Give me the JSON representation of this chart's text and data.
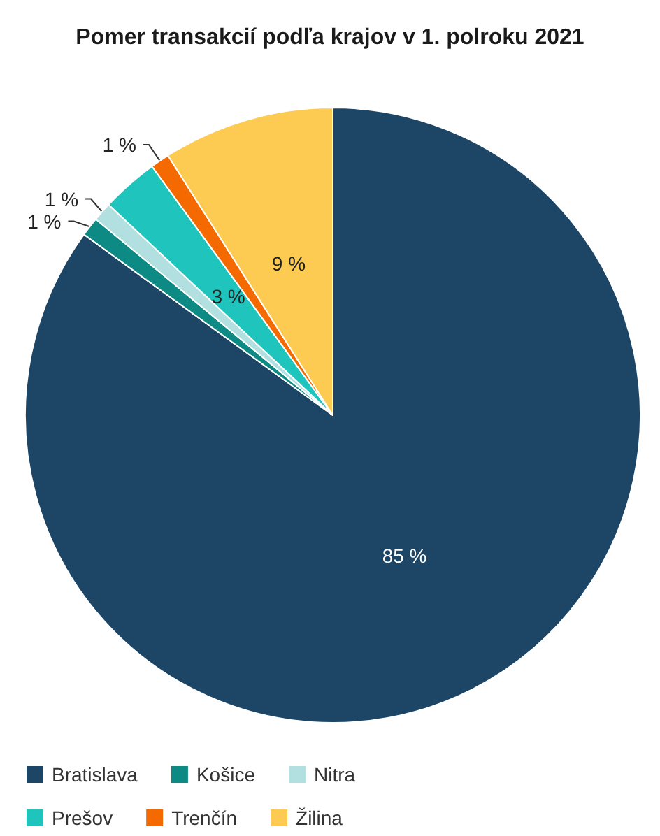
{
  "chart_data": {
    "type": "pie",
    "title": "Pomer transakcií podľa krajov v 1. polroku 2021",
    "categories": [
      "Bratislava",
      "Košice",
      "Nitra",
      "Prešov",
      "Trenčín",
      "Žilina"
    ],
    "values": [
      85,
      1,
      1,
      3,
      1,
      9
    ],
    "colors": [
      "#1d4566",
      "#0e8a84",
      "#b2e0e0",
      "#1fc4bc",
      "#f56a00",
      "#fecb52"
    ],
    "value_labels": [
      "85 %",
      "1 %",
      "1 %",
      "3 %",
      "1 %",
      "9 %"
    ],
    "legend": "bottom"
  }
}
